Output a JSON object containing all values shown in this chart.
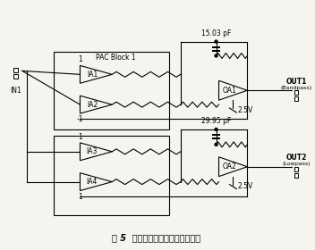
{
  "title": "图 5  用三运放组成的双二阶滤波器",
  "background": "#f5f5f0",
  "pac_block_label": "PAC Block 1",
  "cap1_label": "15.03 pF",
  "cap2_label": "29.95 pF",
  "out1_label": "OUT1",
  "out1_sub": "(Bandpass)",
  "out2_label": "OUT2",
  "out2_sub": "(Lowpass)",
  "in_label": "IN1",
  "v1_label": "2.5V",
  "v2_label": "2.5V",
  "ia_labels": [
    "IA1",
    "IA2",
    "IA3",
    "IA4"
  ],
  "oa_labels": [
    "OA1",
    "OA2"
  ],
  "gain1_top": "1",
  "gain1_bot": "-1",
  "gain2_top": "1",
  "gain2_bot": "1"
}
